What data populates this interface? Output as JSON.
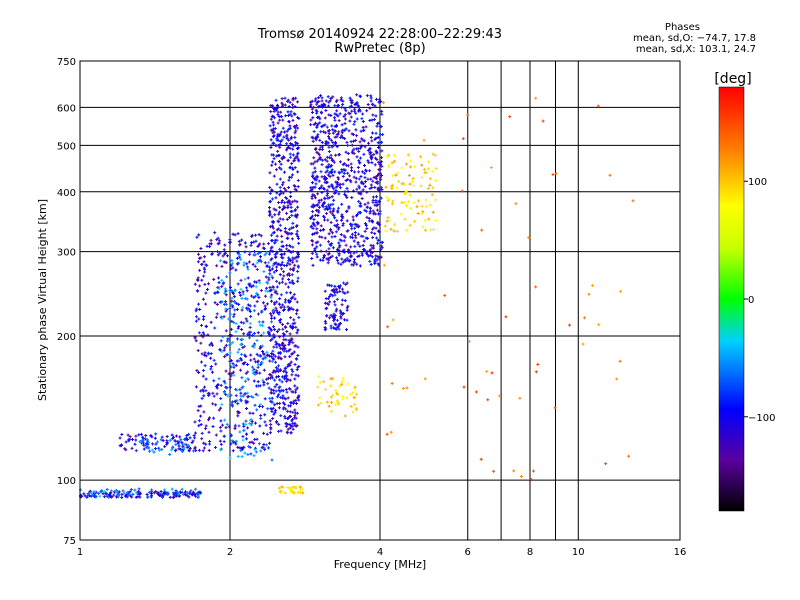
{
  "chart_data": {
    "type": "scatter",
    "title": "Tromsø 20140924 22:28:00–22:29:43",
    "subtitle": "RwPretec (8p)",
    "xlabel": "Frequency [MHz]",
    "ylabel": "Stationary phase Virtual Height [km]",
    "x_scale": "log",
    "y_scale": "log",
    "xlim": [
      1,
      16
    ],
    "ylim": [
      75,
      750
    ],
    "x_ticks": [
      1,
      2,
      4,
      6,
      8,
      10,
      16
    ],
    "y_ticks": [
      75,
      100,
      200,
      300,
      400,
      500,
      600,
      750
    ],
    "x_gridlines": [
      2,
      4,
      6,
      7,
      8,
      9,
      10
    ],
    "y_gridlines": [
      100,
      200,
      300,
      400,
      500,
      600
    ],
    "phase_stats": {
      "heading": "Phases",
      "line_o": "mean, sd,O: −74.7, 17.8",
      "line_x": "mean, sd,X: 103.1, 24.7"
    },
    "colorbar": {
      "label": "[deg]",
      "range": [
        -180,
        180
      ],
      "ticks": [
        -100,
        0,
        100
      ],
      "tick_labels": [
        "−100",
        "0",
        "100"
      ]
    },
    "series": [
      {
        "phase_deg": -110,
        "regions": [
          {
            "fmin": 1.0,
            "fmax": 1.75,
            "hmin": 92,
            "hmax": 95,
            "n": 140
          },
          {
            "fmin": 1.2,
            "fmax": 1.7,
            "hmin": 115,
            "hmax": 125,
            "n": 90
          },
          {
            "fmin": 1.7,
            "fmax": 2.45,
            "hmin": 115,
            "hmax": 330,
            "n": 520
          },
          {
            "fmin": 2.4,
            "fmax": 2.75,
            "hmin": 125,
            "hmax": 630,
            "n": 700
          },
          {
            "fmin": 2.9,
            "fmax": 4.05,
            "hmin": 280,
            "hmax": 640,
            "n": 820
          },
          {
            "fmin": 3.1,
            "fmax": 3.45,
            "hmin": 205,
            "hmax": 260,
            "n": 90
          }
        ]
      },
      {
        "phase_deg": -60,
        "regions": [
          {
            "fmin": 1.0,
            "fmax": 1.75,
            "hmin": 92,
            "hmax": 96,
            "n": 50
          },
          {
            "fmin": 1.3,
            "fmax": 1.7,
            "hmin": 113,
            "hmax": 122,
            "n": 30
          },
          {
            "fmin": 1.9,
            "fmax": 2.45,
            "hmin": 110,
            "hmax": 300,
            "n": 180
          }
        ]
      },
      {
        "phase_deg": 100,
        "regions": [
          {
            "fmin": 2.5,
            "fmax": 2.8,
            "hmin": 94,
            "hmax": 97,
            "n": 30
          },
          {
            "fmin": 3.0,
            "fmax": 3.6,
            "hmin": 135,
            "hmax": 165,
            "n": 45
          },
          {
            "fmin": 4.1,
            "fmax": 5.2,
            "hmin": 330,
            "hmax": 480,
            "n": 95
          }
        ]
      },
      {
        "phase_deg": 140,
        "regions": [
          {
            "fmin": 4.0,
            "fmax": 13.0,
            "hmin": 100,
            "hmax": 640,
            "n": 60
          }
        ]
      }
    ]
  }
}
